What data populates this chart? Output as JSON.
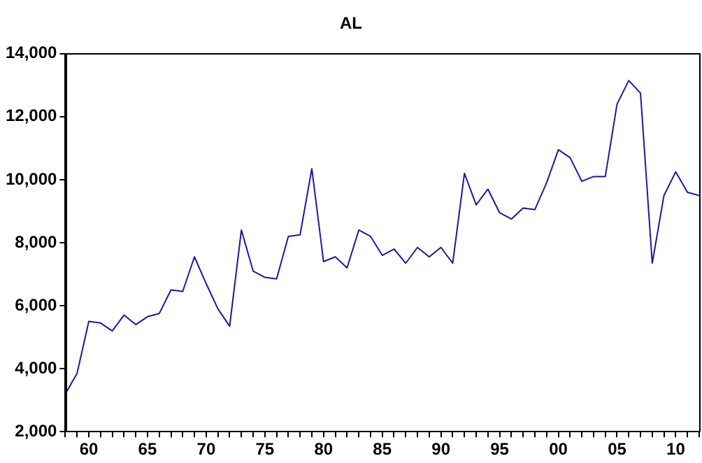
{
  "chart_data": {
    "type": "line",
    "title": "AL",
    "x": [
      1958,
      1959,
      1960,
      1961,
      1962,
      1963,
      1964,
      1965,
      1966,
      1967,
      1968,
      1969,
      1970,
      1971,
      1972,
      1973,
      1974,
      1975,
      1976,
      1977,
      1978,
      1979,
      1980,
      1981,
      1982,
      1983,
      1984,
      1985,
      1986,
      1987,
      1988,
      1989,
      1990,
      1991,
      1992,
      1993,
      1994,
      1995,
      1996,
      1997,
      1998,
      1999,
      2000,
      2001,
      2002,
      2003,
      2004,
      2005,
      2006,
      2007,
      2008,
      2009,
      2010,
      2011,
      2012
    ],
    "series": [
      {
        "color": "#1a1a9c",
        "values": [
          3200,
          3850,
          5500,
          5450,
          5200,
          5700,
          5400,
          5650,
          5750,
          6500,
          6450,
          7550,
          6700,
          5900,
          5350,
          8400,
          7100,
          6900,
          6850,
          8200,
          8250,
          10350,
          7400,
          7550,
          7200,
          8400,
          8200,
          7600,
          7800,
          7350,
          7850,
          7550,
          7850,
          7350,
          10200,
          9200,
          9700,
          8950,
          8750,
          9100,
          9050,
          9900,
          10950,
          10700,
          9950,
          10100,
          10100,
          12400,
          13150,
          12750,
          7350,
          9500,
          10250,
          9600,
          9500
        ]
      }
    ],
    "xlim": [
      1958,
      2012
    ],
    "xticks": [
      {
        "value": 1958,
        "label": null
      },
      {
        "value": 1959,
        "label": null
      },
      {
        "value": 1960,
        "label": "60"
      },
      {
        "value": 1961,
        "label": null
      },
      {
        "value": 1962,
        "label": null
      },
      {
        "value": 1963,
        "label": null
      },
      {
        "value": 1964,
        "label": null
      },
      {
        "value": 1965,
        "label": "65"
      },
      {
        "value": 1966,
        "label": null
      },
      {
        "value": 1967,
        "label": null
      },
      {
        "value": 1968,
        "label": null
      },
      {
        "value": 1969,
        "label": null
      },
      {
        "value": 1970,
        "label": "70"
      },
      {
        "value": 1971,
        "label": null
      },
      {
        "value": 1972,
        "label": null
      },
      {
        "value": 1973,
        "label": null
      },
      {
        "value": 1974,
        "label": null
      },
      {
        "value": 1975,
        "label": "75"
      },
      {
        "value": 1976,
        "label": null
      },
      {
        "value": 1977,
        "label": null
      },
      {
        "value": 1978,
        "label": null
      },
      {
        "value": 1979,
        "label": null
      },
      {
        "value": 1980,
        "label": "80"
      },
      {
        "value": 1981,
        "label": null
      },
      {
        "value": 1982,
        "label": null
      },
      {
        "value": 1983,
        "label": null
      },
      {
        "value": 1984,
        "label": null
      },
      {
        "value": 1985,
        "label": "85"
      },
      {
        "value": 1986,
        "label": null
      },
      {
        "value": 1987,
        "label": null
      },
      {
        "value": 1988,
        "label": null
      },
      {
        "value": 1989,
        "label": null
      },
      {
        "value": 1990,
        "label": "90"
      },
      {
        "value": 1991,
        "label": null
      },
      {
        "value": 1992,
        "label": null
      },
      {
        "value": 1993,
        "label": null
      },
      {
        "value": 1994,
        "label": null
      },
      {
        "value": 1995,
        "label": "95"
      },
      {
        "value": 1996,
        "label": null
      },
      {
        "value": 1997,
        "label": null
      },
      {
        "value": 1998,
        "label": null
      },
      {
        "value": 1999,
        "label": null
      },
      {
        "value": 2000,
        "label": "00"
      },
      {
        "value": 2001,
        "label": null
      },
      {
        "value": 2002,
        "label": null
      },
      {
        "value": 2003,
        "label": null
      },
      {
        "value": 2004,
        "label": null
      },
      {
        "value": 2005,
        "label": "05"
      },
      {
        "value": 2006,
        "label": null
      },
      {
        "value": 2007,
        "label": null
      },
      {
        "value": 2008,
        "label": null
      },
      {
        "value": 2009,
        "label": null
      },
      {
        "value": 2010,
        "label": "10"
      },
      {
        "value": 2011,
        "label": null
      },
      {
        "value": 2012,
        "label": null
      }
    ],
    "ylim": [
      2000,
      14000
    ],
    "yticks": [
      {
        "value": 2000,
        "label": "2,000"
      },
      {
        "value": 4000,
        "label": "4,000"
      },
      {
        "value": 6000,
        "label": "6,000"
      },
      {
        "value": 8000,
        "label": "8,000"
      },
      {
        "value": 10000,
        "label": "10,000"
      },
      {
        "value": 12000,
        "label": "12,000"
      },
      {
        "value": 14000,
        "label": "14,000"
      }
    ],
    "grid": false,
    "legend": false,
    "marker": "none",
    "line_style": "solid"
  }
}
